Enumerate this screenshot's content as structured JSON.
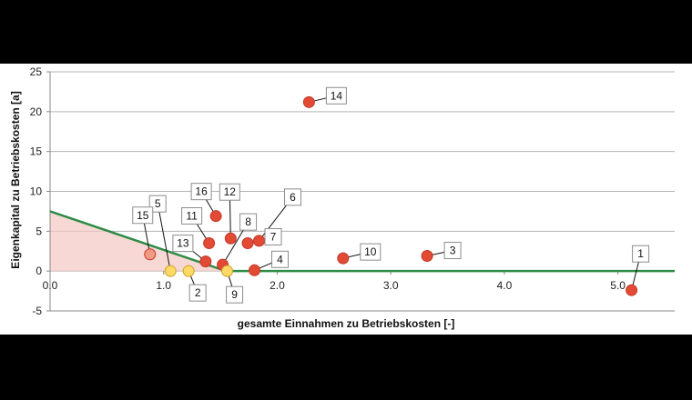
{
  "chart_data": {
    "type": "scatter",
    "xlabel": "gesamte Einnahmen zu Betriebskosten [-]",
    "ylabel": "Eigenkapital zu Betriebskosten [a]",
    "xlim": [
      0,
      5.5
    ],
    "ylim": [
      -5,
      25
    ],
    "xticks": [
      "0.0",
      "1.0",
      "2.0",
      "3.0",
      "4.0",
      "5.0"
    ],
    "yticks": [
      "25",
      "20",
      "15",
      "10",
      "5",
      "0",
      "-5"
    ],
    "grid": "horizontal",
    "threshold_line": {
      "color": "#2e8b46",
      "points": [
        [
          0,
          7.5
        ],
        [
          1.55,
          0
        ],
        [
          5.5,
          0
        ]
      ]
    },
    "shaded_region": {
      "color": "#f4c7c3",
      "points": [
        [
          0,
          7.5
        ],
        [
          1.55,
          0
        ],
        [
          0,
          0
        ]
      ]
    },
    "point_colors": {
      "red": "#e34a33",
      "yellow": "#ffd966",
      "faded": "#f29a82"
    },
    "points": [
      {
        "label": "1",
        "x": 5.12,
        "y": -2.4,
        "color": "red"
      },
      {
        "label": "2",
        "x": 1.22,
        "y": 0.0,
        "color": "yellow"
      },
      {
        "label": "3",
        "x": 3.32,
        "y": 1.9,
        "color": "red"
      },
      {
        "label": "4",
        "x": 1.8,
        "y": 0.1,
        "color": "red"
      },
      {
        "label": "5",
        "x": 1.06,
        "y": 0.0,
        "color": "yellow"
      },
      {
        "label": "6",
        "x": 1.84,
        "y": 3.8,
        "color": "red"
      },
      {
        "label": "7",
        "x": 1.74,
        "y": 3.5,
        "color": "red"
      },
      {
        "label": "8",
        "x": 1.52,
        "y": 0.8,
        "color": "red"
      },
      {
        "label": "9",
        "x": 1.56,
        "y": 0.0,
        "color": "yellow"
      },
      {
        "label": "10",
        "x": 2.58,
        "y": 1.6,
        "color": "red"
      },
      {
        "label": "11",
        "x": 1.4,
        "y": 3.5,
        "color": "red"
      },
      {
        "label": "12",
        "x": 1.59,
        "y": 4.1,
        "color": "red"
      },
      {
        "label": "13",
        "x": 1.37,
        "y": 1.2,
        "color": "red"
      },
      {
        "label": "14",
        "x": 2.28,
        "y": 21.2,
        "color": "red"
      },
      {
        "label": "15",
        "x": 0.88,
        "y": 2.1,
        "color": "faded"
      },
      {
        "label": "16",
        "x": 1.46,
        "y": 6.9,
        "color": "red"
      }
    ]
  }
}
